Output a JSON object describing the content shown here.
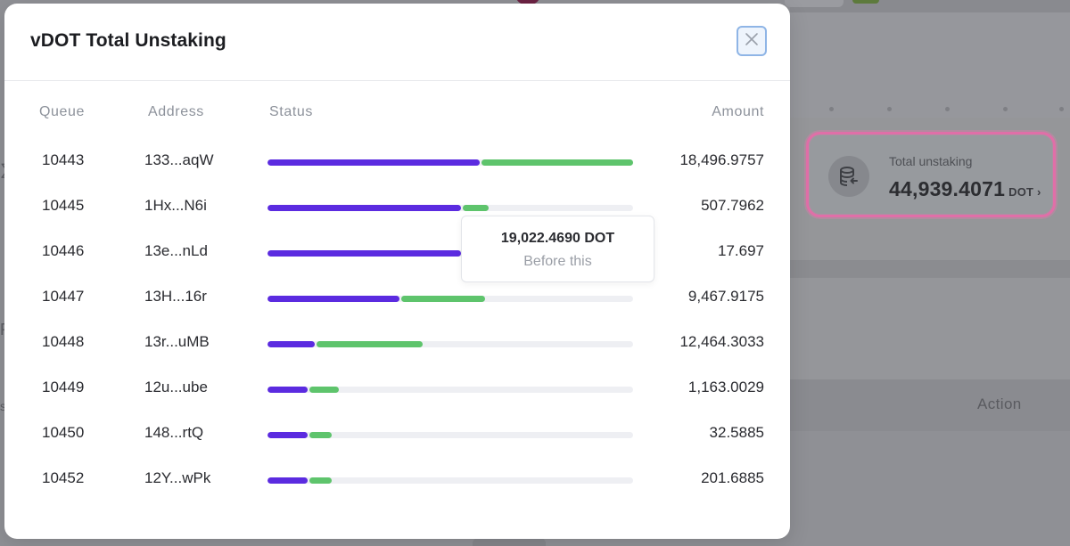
{
  "modal": {
    "title": "vDOT Total Unstaking",
    "close_icon": "close-icon"
  },
  "table": {
    "headers": {
      "queue": "Queue",
      "address": "Address",
      "status": "Status",
      "amount": "Amount"
    },
    "rows": [
      {
        "queue": "10443",
        "address": "133...aqW",
        "amount": "18,496.9757",
        "status_purple": 0.58,
        "status_green": 0.42
      },
      {
        "queue": "10445",
        "address": "1Hx...N6i",
        "amount": "507.7962",
        "status_purple": 0.53,
        "status_green": 0.07
      },
      {
        "queue": "10446",
        "address": "13e...nLd",
        "amount": "17.697",
        "status_purple": 0.53,
        "status_green": 0.0
      },
      {
        "queue": "10447",
        "address": "13H...16r",
        "amount": "9,467.9175",
        "status_purple": 0.36,
        "status_green": 0.23
      },
      {
        "queue": "10448",
        "address": "13r...uMB",
        "amount": "12,464.3033",
        "status_purple": 0.13,
        "status_green": 0.29
      },
      {
        "queue": "10449",
        "address": "12u...ube",
        "amount": "1,163.0029",
        "status_purple": 0.11,
        "status_green": 0.08
      },
      {
        "queue": "10450",
        "address": "148...rtQ",
        "amount": "32.5885",
        "status_purple": 0.11,
        "status_green": 0.06
      },
      {
        "queue": "10452",
        "address": "12Y...wPk",
        "amount": "201.6885",
        "status_purple": 0.11,
        "status_green": 0.06
      }
    ]
  },
  "tooltip": {
    "value": "19,022.4690 DOT",
    "label": "Before this"
  },
  "background": {
    "total_unstaking_label": "Total unstaking",
    "total_unstaking_value": "44,939.4071",
    "total_unstaking_unit": "DOT ›",
    "action_header": "Action"
  },
  "colors": {
    "status_purple": "#5b2be0",
    "status_green": "#5ec46c",
    "highlight_pink": "#e06fa8",
    "close_border": "#8fb5e6"
  }
}
